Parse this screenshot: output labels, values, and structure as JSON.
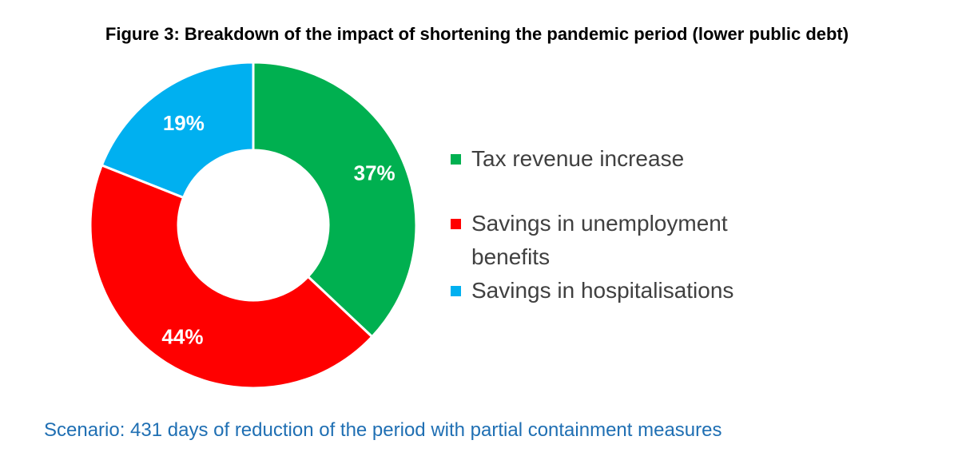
{
  "title": "Figure 3: Breakdown of the impact of shortening the pandemic period (lower public debt)",
  "footer": "Scenario: 431 days of reduction of the period with partial containment measures",
  "chart_data": {
    "type": "pie",
    "subtype": "donut",
    "title": "Figure 3: Breakdown of the impact of shortening the pandemic period (lower public debt)",
    "categories": [
      "Tax revenue increase",
      "Savings in unemployment benefits",
      "Savings in hospitalisations"
    ],
    "values": [
      37,
      44,
      19
    ],
    "value_labels": [
      "37%",
      "44%",
      "19%"
    ],
    "colors": [
      "#00b050",
      "#ff0000",
      "#00b0f0"
    ],
    "legend_position": "right",
    "start_angle": "12 o'clock, clockwise"
  }
}
